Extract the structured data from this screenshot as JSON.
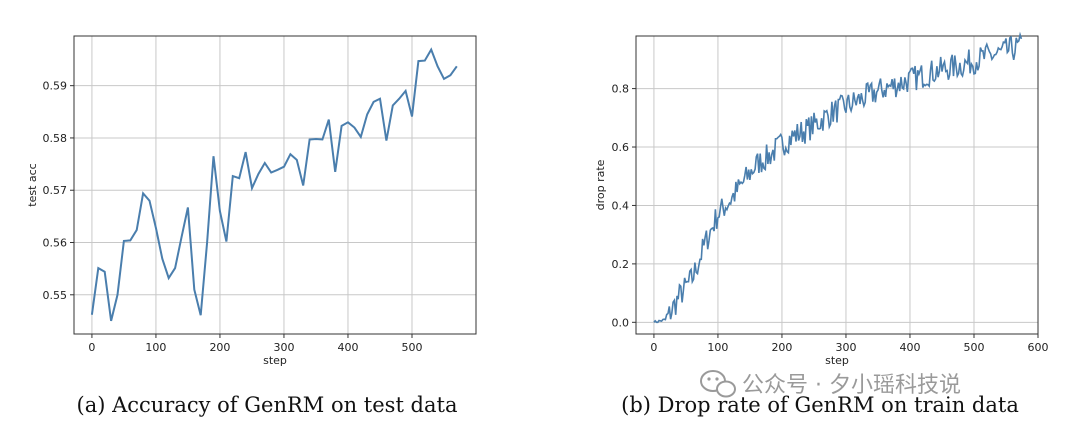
{
  "chart_data": [
    {
      "type": "line",
      "xlabel": "step",
      "ylabel": "test acc",
      "xlim": [
        -28,
        600
      ],
      "ylim": [
        0.5425,
        0.5995
      ],
      "xticks": [
        0,
        100,
        200,
        300,
        400,
        500
      ],
      "yticks": [
        0.55,
        0.56,
        0.57,
        0.58,
        0.59
      ],
      "ytick_labels": [
        "0.55",
        "0.56",
        "0.57",
        "0.58",
        "0.59"
      ],
      "grid": true,
      "color": "#4a7ead",
      "caption": "(a) Accuracy of GenRM on test data",
      "series": [
        {
          "x": [
            0,
            10,
            20,
            30,
            40,
            50,
            60,
            70,
            80,
            90,
            100,
            110,
            120,
            130,
            140,
            150,
            160,
            170,
            180,
            190,
            200,
            210,
            220,
            230,
            240,
            250,
            260,
            270,
            280,
            290,
            300,
            310,
            320,
            330,
            340,
            350,
            360,
            370,
            380,
            390,
            400,
            410,
            420,
            430,
            440,
            450,
            460,
            470,
            480,
            490,
            500,
            510,
            520,
            530,
            540,
            550,
            560,
            570
          ],
          "y": [
            0.5462,
            0.5551,
            0.5544,
            0.545,
            0.55,
            0.5603,
            0.5604,
            0.5624,
            0.5694,
            0.568,
            0.5628,
            0.5569,
            0.5532,
            0.5551,
            0.561,
            0.5667,
            0.551,
            0.5461,
            0.56,
            0.5765,
            0.566,
            0.5602,
            0.5727,
            0.5723,
            0.5773,
            0.5704,
            0.5731,
            0.5752,
            0.5734,
            0.5739,
            0.5745,
            0.5769,
            0.5758,
            0.5709,
            0.5797,
            0.5798,
            0.5797,
            0.5835,
            0.5735,
            0.5823,
            0.583,
            0.582,
            0.5802,
            0.5845,
            0.5869,
            0.5875,
            0.5795,
            0.5862,
            0.5875,
            0.589,
            0.5841,
            0.5947,
            0.5948,
            0.5969,
            0.5937,
            0.5913,
            0.592,
            0.5937
          ]
        }
      ]
    },
    {
      "type": "line",
      "xlabel": "step",
      "ylabel": "drop rate",
      "xlim": [
        -28,
        600
      ],
      "ylim": [
        -0.04,
        0.98
      ],
      "xticks": [
        0,
        100,
        200,
        300,
        400,
        500,
        600
      ],
      "yticks": [
        0.0,
        0.2,
        0.4,
        0.6,
        0.8
      ],
      "ytick_labels": [
        "0.0",
        "0.2",
        "0.4",
        "0.6",
        "0.8"
      ],
      "grid": true,
      "color": "#4a7ead",
      "caption": "(b) Drop rate of GenRM on train data",
      "series": [
        {
          "x": [
            0,
            20,
            40,
            60,
            80,
            100,
            120,
            140,
            160,
            180,
            200,
            220,
            240,
            260,
            280,
            300,
            320,
            340,
            360,
            380,
            400,
            420,
            440,
            460,
            480,
            500,
            520,
            540,
            560,
            575
          ],
          "y": [
            0.0,
            0.01,
            0.09,
            0.15,
            0.27,
            0.37,
            0.42,
            0.48,
            0.54,
            0.57,
            0.61,
            0.64,
            0.66,
            0.69,
            0.72,
            0.74,
            0.76,
            0.78,
            0.8,
            0.815,
            0.83,
            0.845,
            0.86,
            0.87,
            0.88,
            0.895,
            0.91,
            0.92,
            0.935,
            0.945
          ],
          "noise": 0.045
        }
      ]
    }
  ],
  "watermark": {
    "icon": "wechat-icon",
    "text": "公众号 · 夕小瑶科技说"
  }
}
